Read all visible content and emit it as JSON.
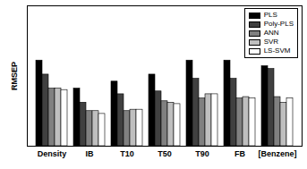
{
  "chart_data": {
    "type": "bar",
    "y_label": "RMSEP",
    "categories": [
      "Density",
      "IB",
      "T10",
      "T50",
      "T90",
      "FB",
      "[Benzene]"
    ],
    "series": [
      {
        "name": "PLS",
        "color": "#000000",
        "values": [
          61,
          41,
          46,
          51,
          61,
          61,
          57
        ]
      },
      {
        "name": "Poly-PLS",
        "color": "#404040",
        "values": [
          51,
          31,
          37,
          39,
          48,
          48,
          55
        ]
      },
      {
        "name": "ANN",
        "color": "#808080",
        "values": [
          41,
          25,
          25,
          32,
          34,
          34,
          35
        ]
      },
      {
        "name": "SVR",
        "color": "#bfbfbf",
        "values": [
          41,
          25,
          26,
          31,
          37,
          35,
          31
        ]
      },
      {
        "name": "LS-SVM",
        "color": "#ffffff",
        "values": [
          40,
          23,
          26,
          30,
          37,
          34,
          34
        ]
      }
    ],
    "ylim": [
      0,
      100
    ],
    "tick_labels": "x",
    "legend": "upper right"
  }
}
